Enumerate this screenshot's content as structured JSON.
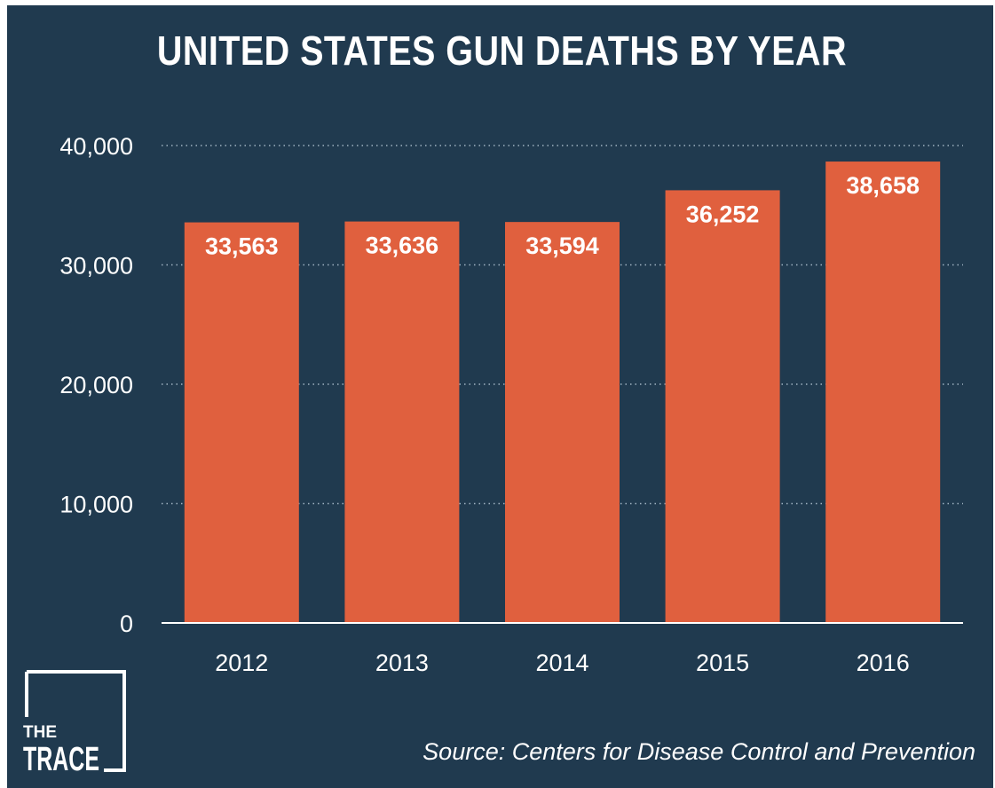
{
  "chart_data": {
    "type": "bar",
    "title": "UNITED STATES GUN DEATHS BY YEAR",
    "categories": [
      "2012",
      "2013",
      "2014",
      "2015",
      "2016"
    ],
    "values": [
      33563,
      33636,
      33594,
      36252,
      38658
    ],
    "value_labels": [
      "33,563",
      "33,636",
      "33,594",
      "36,252",
      "38,658"
    ],
    "xlabel": "",
    "ylabel": "",
    "ylim": [
      0,
      40000
    ],
    "yticks": [
      0,
      10000,
      20000,
      30000,
      40000
    ],
    "ytick_labels": [
      "0",
      "10,000",
      "20,000",
      "30,000",
      "40,000"
    ],
    "grid": "horizontal dotted",
    "legend": "none"
  },
  "source": "Source: Centers for Disease Control and Prevention",
  "logo": {
    "line1": "THE",
    "line2": "TRACE"
  },
  "colors": {
    "background": "#203a4f",
    "bar": "#e0603e",
    "text": "#ffffff",
    "grid": "#9fb3c2"
  }
}
